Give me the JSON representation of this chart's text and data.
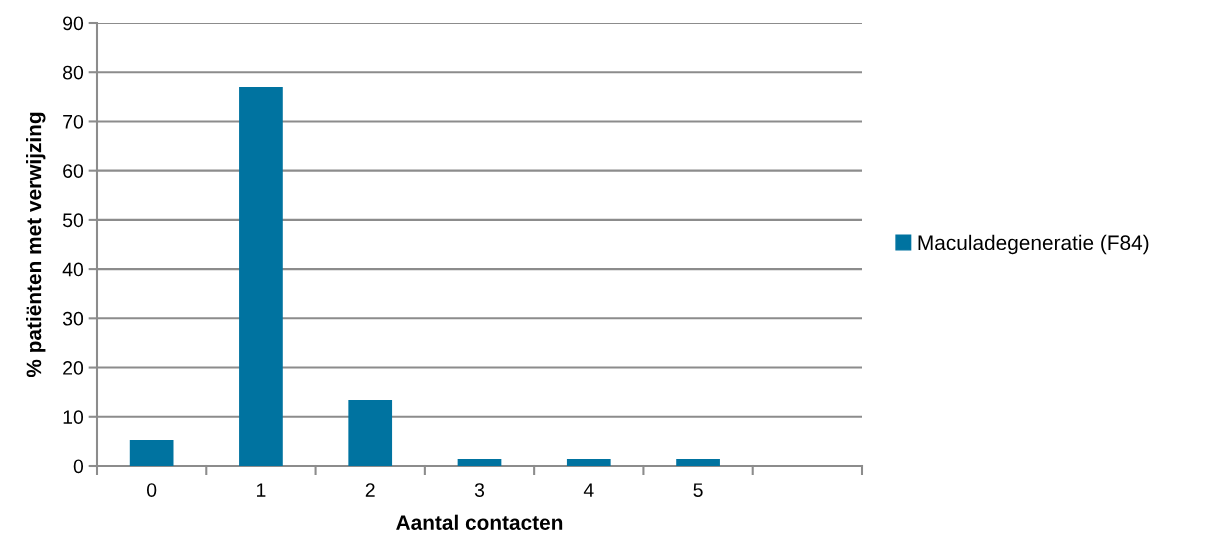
{
  "chart_data": {
    "type": "bar",
    "xlabel": "Aantal contacten",
    "ylabel": "% patiënten met verwijzing",
    "categories": [
      "0",
      "1",
      "2",
      "3",
      "4",
      "5",
      null
    ],
    "series": [
      {
        "name": "Maculadegeneratie (F84)",
        "color": "#0073a0",
        "values": [
          5.3,
          77,
          13.4,
          1.4,
          1.4,
          1.4,
          null
        ]
      }
    ],
    "ylim": [
      0,
      90
    ],
    "yticks": [
      0,
      10,
      20,
      30,
      40,
      50,
      60,
      70,
      80,
      90
    ],
    "grid": "y",
    "legend": "right"
  }
}
